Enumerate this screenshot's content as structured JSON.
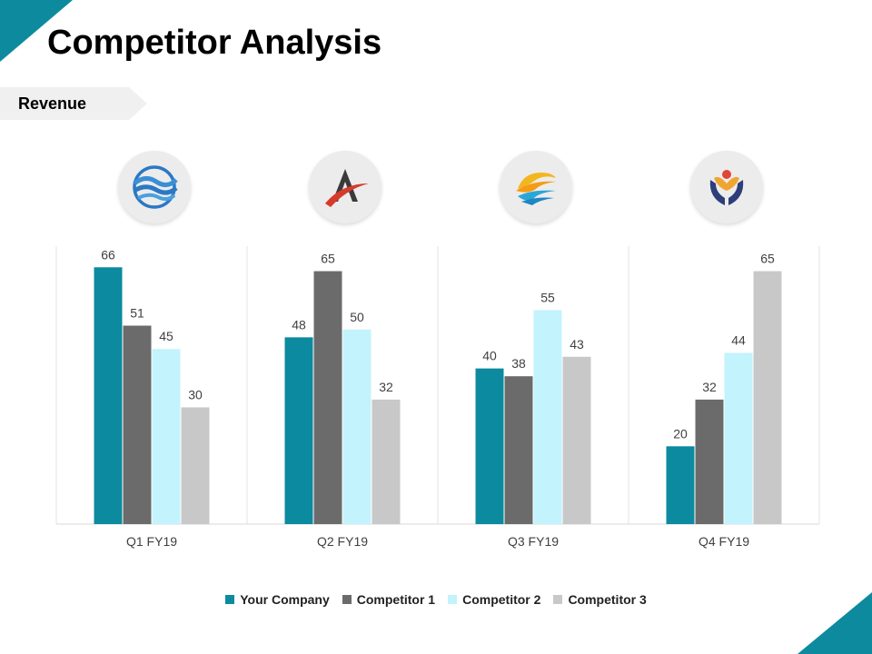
{
  "title": "Competitor Analysis",
  "section_label": "Revenue",
  "colors": {
    "accent": "#0e8a9e",
    "series": [
      "#0c8a9f",
      "#6b6b6b",
      "#c3f3fd",
      "#c8c8c8"
    ]
  },
  "logos": [
    {
      "icon": "wave-circle-icon"
    },
    {
      "icon": "letter-a-swoosh-icon"
    },
    {
      "icon": "sun-wave-icon"
    },
    {
      "icon": "hands-heart-icon"
    }
  ],
  "chart_data": {
    "type": "bar",
    "categories": [
      "Q1 FY19",
      "Q2 FY19",
      "Q3 FY19",
      "Q4 FY19"
    ],
    "series": [
      {
        "name": "Your Company",
        "values": [
          66,
          48,
          40,
          20
        ]
      },
      {
        "name": "Competitor 1",
        "values": [
          51,
          65,
          38,
          32
        ]
      },
      {
        "name": "Competitor 2",
        "values": [
          45,
          50,
          55,
          44
        ]
      },
      {
        "name": "Competitor 3",
        "values": [
          30,
          32,
          43,
          65
        ]
      }
    ],
    "ylim": [
      0,
      70
    ],
    "grid": false,
    "legend": "bottom",
    "data_labels": true
  }
}
